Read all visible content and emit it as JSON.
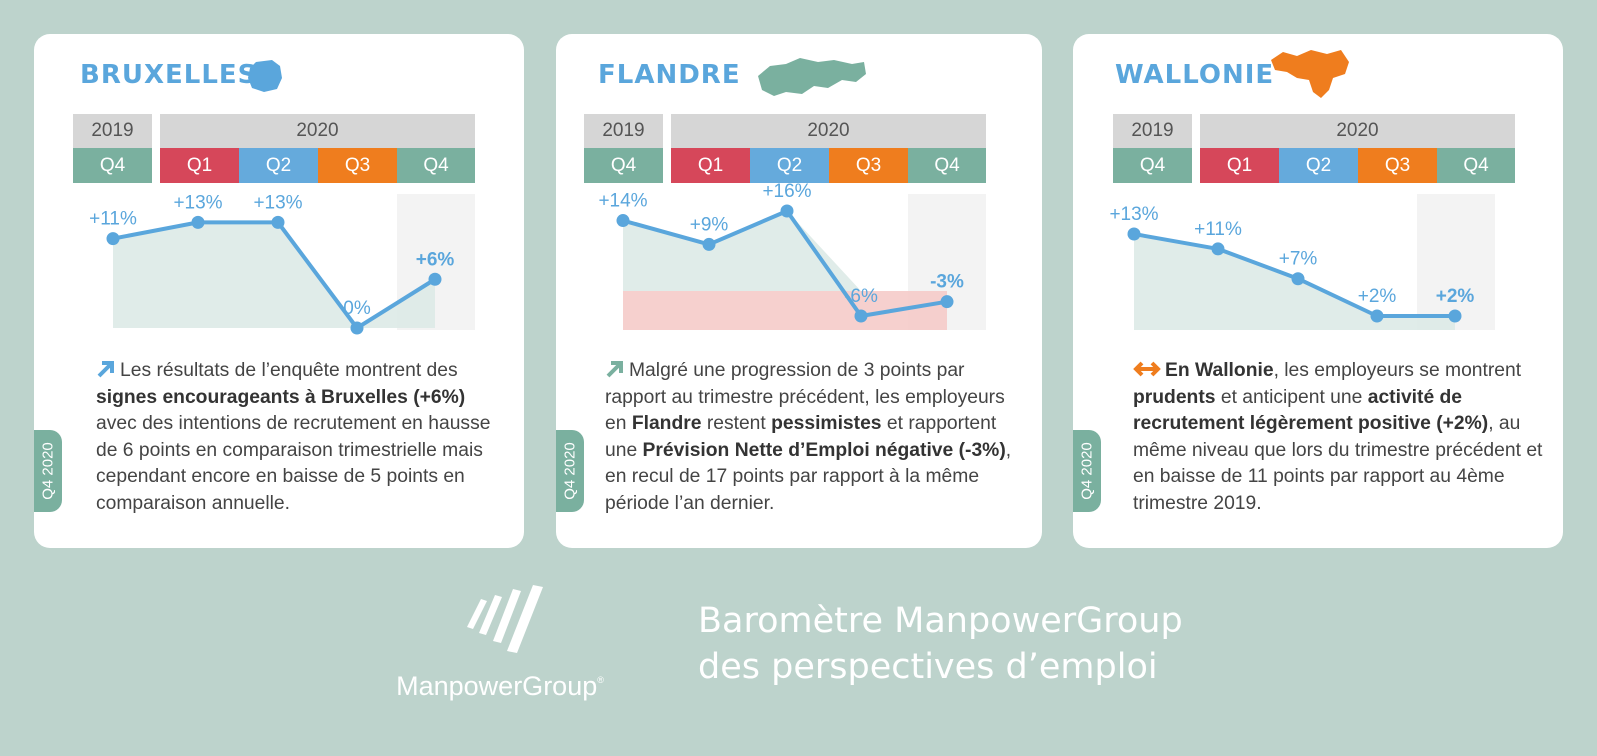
{
  "colors": {
    "background": "#bdd3cc",
    "title_blue": "#5aa6dc",
    "q1": "#d6475a",
    "q2": "#65aadc",
    "q3": "#ef7d1e",
    "q4": "#7ab09f",
    "year": "#d6d6d6",
    "positive_area": "#dbe9e5",
    "negative_area": "#f5c8c6"
  },
  "regions": [
    {
      "title": "BRUXELLES",
      "map_icon": "brussels-map-icon",
      "years": {
        "prev": "2019",
        "curr": "2020"
      },
      "quarters": [
        "Q4",
        "Q1",
        "Q2",
        "Q3",
        "Q4"
      ],
      "tab_label": "Q4 2020",
      "description": {
        "p1": "Les résultats de l’enquête montrent des",
        "b1": "signes encourageants à Bruxelles",
        "b2": "(+6%)",
        "p2": "avec des intentions de recrutement en hausse de 6 points en comparaison trimestrielle mais cependant encore en baisse de 5 points en comparaison annuelle."
      }
    },
    {
      "title": "FLANDRE",
      "map_icon": "flanders-map-icon",
      "years": {
        "prev": "2019",
        "curr": "2020"
      },
      "quarters": [
        "Q4",
        "Q1",
        "Q2",
        "Q3",
        "Q4"
      ],
      "tab_label": "Q4 2020",
      "description": {
        "p1": "Malgré une progression de 3 points par rapport au trimestre précédent, les employeurs en",
        "b1": "Flandre",
        "p2": "restent",
        "b2": "pessimistes",
        "p3": "et rapportent une",
        "b3": "Prévision Nette d’Emploi négative (-3%)",
        "p4": ", en recul de 17 points par rapport à la même période l’an dernier."
      }
    },
    {
      "title": "WALLONIE",
      "map_icon": "wallonia-map-icon",
      "years": {
        "prev": "2019",
        "curr": "2020"
      },
      "quarters": [
        "Q4",
        "Q1",
        "Q2",
        "Q3",
        "Q4"
      ],
      "tab_label": "Q4 2020",
      "description": {
        "b1": "En Wallonie",
        "p1": ", les employeurs se montrent",
        "b2": "prudents",
        "p2": "et anticipent une",
        "b3": "activité de recrutement légèrement positive (+2%)",
        "p3": ", au même niveau que lors du trimestre précédent et en baisse de 11 points par rapport au 4ème trimestre 2019."
      }
    }
  ],
  "chart_data": [
    {
      "type": "line",
      "title": "BRUXELLES",
      "categories": [
        "2019 Q4",
        "2020 Q1",
        "2020 Q2",
        "2020 Q3",
        "2020 Q4"
      ],
      "values": [
        11,
        13,
        13,
        0,
        6
      ],
      "labels": [
        "+11%",
        "+13%",
        "+13%",
        "0%",
        "+6%"
      ],
      "ylim": [
        0,
        16
      ]
    },
    {
      "type": "line",
      "title": "FLANDRE",
      "categories": [
        "2019 Q4",
        "2020 Q1",
        "2020 Q2",
        "2020 Q3",
        "2020 Q4"
      ],
      "values": [
        14,
        9,
        16,
        -6,
        -3
      ],
      "labels": [
        "+14%",
        "+9%",
        "+16%",
        "-6%",
        "-3%"
      ],
      "ylim": [
        -7,
        17
      ]
    },
    {
      "type": "line",
      "title": "WALLONIE",
      "categories": [
        "2019 Q4",
        "2020 Q1",
        "2020 Q2",
        "2020 Q3",
        "2020 Q4"
      ],
      "values": [
        13,
        11,
        7,
        2,
        2
      ],
      "labels": [
        "+13%",
        "+11%",
        "+7%",
        "+2%",
        "+2%"
      ],
      "ylim": [
        0,
        15
      ]
    }
  ],
  "footer": {
    "brand": "ManpowerGroup",
    "brand_mark": "®",
    "title_line1": "Baromètre ManpowerGroup",
    "title_line2": "des perspectives d’emploi"
  }
}
